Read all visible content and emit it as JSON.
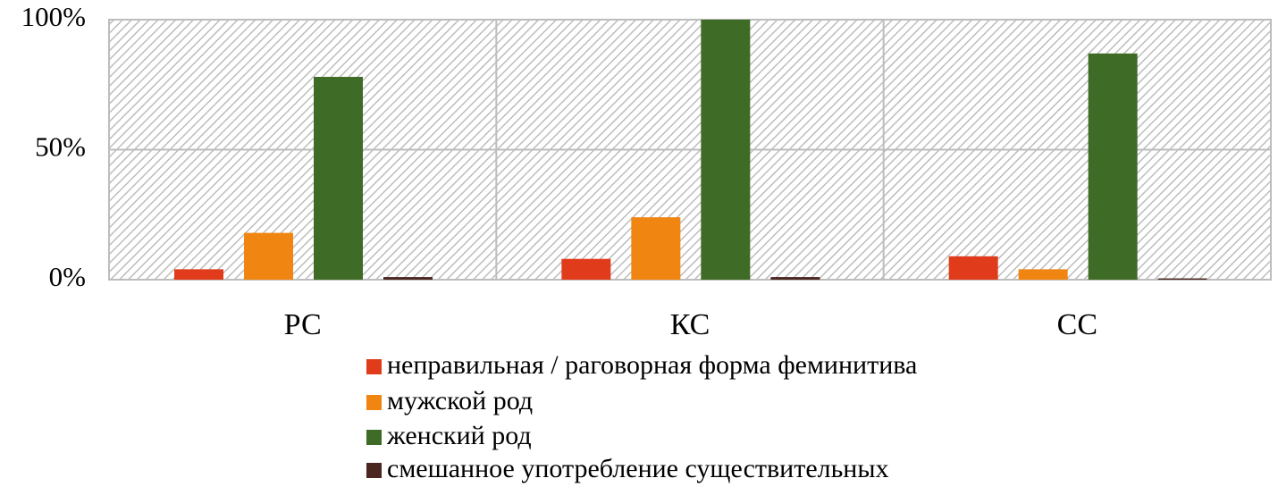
{
  "chart_data": {
    "type": "bar",
    "categories": [
      "РС",
      "КС",
      "СС"
    ],
    "series": [
      {
        "name": "неправильная / раговорная форма феминитива",
        "color": "#e03c1c",
        "values": [
          4,
          8,
          9
        ]
      },
      {
        "name": "мужской род",
        "color": "#f08512",
        "values": [
          18,
          24,
          4
        ]
      },
      {
        "name": "женский род",
        "color": "#3e6b25",
        "values": [
          78,
          100,
          87
        ]
      },
      {
        "name": "смешанное употребление существительных",
        "color": "#4a2620",
        "values": [
          1,
          1,
          0.5
        ]
      }
    ],
    "ylim": [
      0,
      100
    ],
    "yticks": [
      {
        "value": 0,
        "label": "0%"
      },
      {
        "value": 50,
        "label": "50%"
      },
      {
        "value": 100,
        "label": "100%"
      }
    ],
    "grid": true,
    "legend": "bottom"
  }
}
